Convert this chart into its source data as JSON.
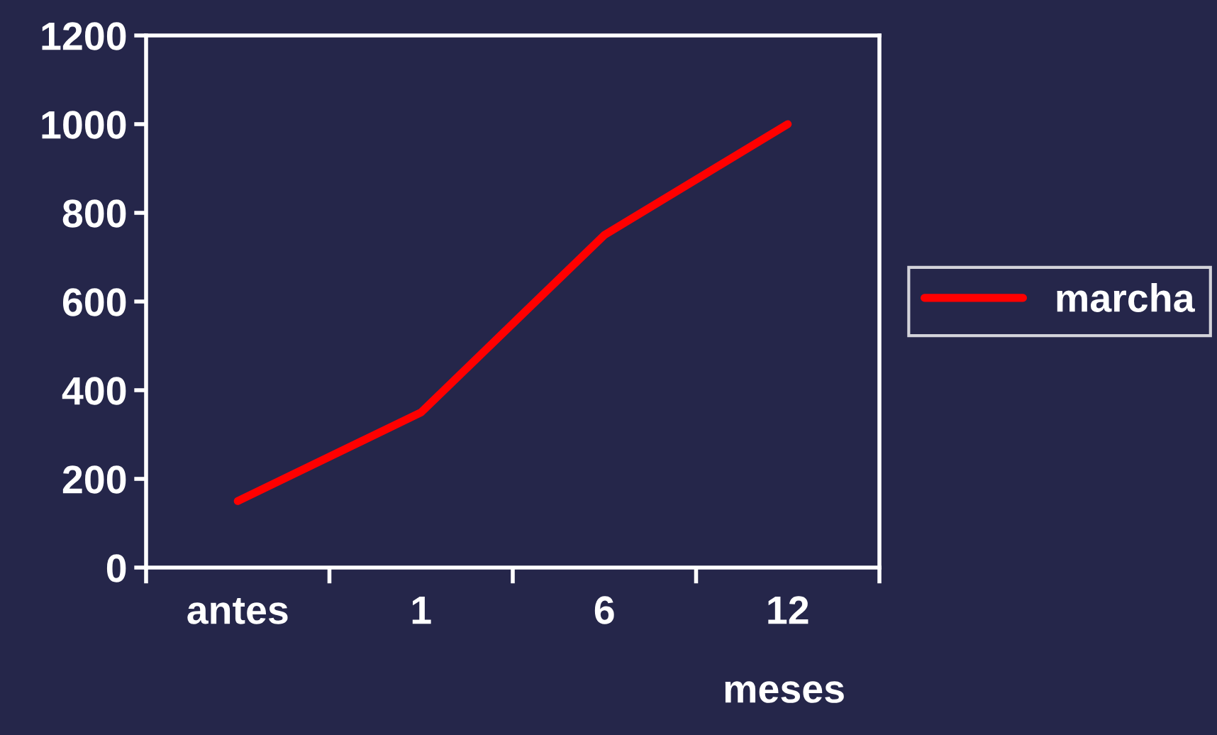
{
  "chart_data": {
    "type": "line",
    "categories": [
      "antes",
      "1",
      "6",
      "12"
    ],
    "series": [
      {
        "name": "marcha",
        "color": "#ff0000",
        "values": [
          150,
          350,
          750,
          1000
        ]
      }
    ],
    "xlabel": "meses",
    "ylim": [
      0,
      1200
    ],
    "yticks": [
      0,
      200,
      400,
      600,
      800,
      1000,
      1200
    ],
    "grid": false,
    "legend": "right",
    "marker": "none",
    "line_style": "solid"
  }
}
